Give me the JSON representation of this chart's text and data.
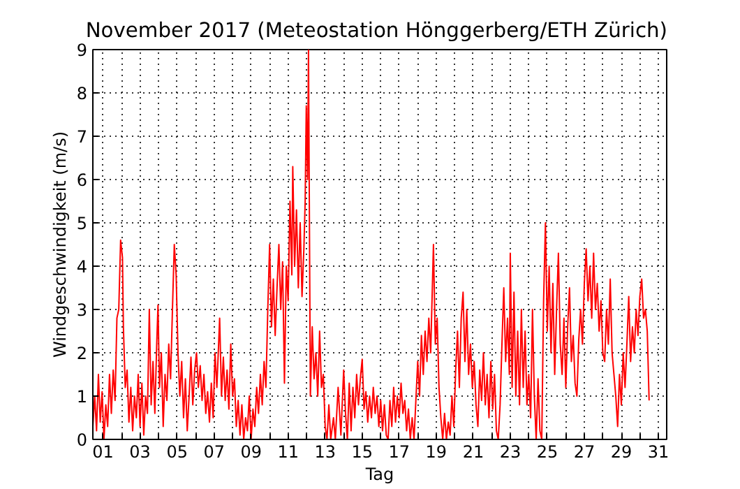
{
  "chart_data": {
    "type": "line",
    "title": "November 2017  (Meteostation Hönggerberg/ETH Zürich)",
    "xlabel": "Tag",
    "ylabel": "Windgeschwindigkeit (m/s)",
    "xlim": [
      0.45,
      31.45
    ],
    "ylim": [
      0,
      9
    ],
    "xticks": [
      {
        "value": 1,
        "label": "01"
      },
      {
        "value": 2,
        "label": null
      },
      {
        "value": 3,
        "label": "03"
      },
      {
        "value": 4,
        "label": null
      },
      {
        "value": 5,
        "label": "05"
      },
      {
        "value": 6,
        "label": null
      },
      {
        "value": 7,
        "label": "07"
      },
      {
        "value": 8,
        "label": null
      },
      {
        "value": 9,
        "label": "09"
      },
      {
        "value": 10,
        "label": null
      },
      {
        "value": 11,
        "label": "11"
      },
      {
        "value": 12,
        "label": null
      },
      {
        "value": 13,
        "label": "13"
      },
      {
        "value": 14,
        "label": null
      },
      {
        "value": 15,
        "label": "15"
      },
      {
        "value": 16,
        "label": null
      },
      {
        "value": 17,
        "label": "17"
      },
      {
        "value": 18,
        "label": null
      },
      {
        "value": 19,
        "label": "19"
      },
      {
        "value": 20,
        "label": null
      },
      {
        "value": 21,
        "label": "21"
      },
      {
        "value": 22,
        "label": null
      },
      {
        "value": 23,
        "label": "23"
      },
      {
        "value": 24,
        "label": null
      },
      {
        "value": 25,
        "label": "25"
      },
      {
        "value": 26,
        "label": null
      },
      {
        "value": 27,
        "label": "27"
      },
      {
        "value": 28,
        "label": null
      },
      {
        "value": 29,
        "label": "29"
      },
      {
        "value": 30,
        "label": null
      },
      {
        "value": 31,
        "label": "31"
      }
    ],
    "yticks": [
      0,
      1,
      2,
      3,
      4,
      5,
      6,
      7,
      8,
      9
    ],
    "grid": true,
    "series": [
      {
        "color": "#ff0000",
        "x": [
          0.45,
          0.55,
          0.65,
          0.75,
          0.85,
          0.95,
          1.05,
          1.15,
          1.25,
          1.35,
          1.45,
          1.55,
          1.65,
          1.75,
          1.85,
          1.95,
          2.05,
          2.1,
          2.2,
          2.3,
          2.4,
          2.5,
          2.6,
          2.7,
          2.8,
          2.9,
          3.0,
          3.1,
          3.2,
          3.3,
          3.4,
          3.5,
          3.6,
          3.7,
          3.8,
          3.9,
          3.97,
          4.05,
          4.15,
          4.25,
          4.35,
          4.45,
          4.55,
          4.65,
          4.75,
          4.85,
          4.95,
          5.05,
          5.15,
          5.25,
          5.35,
          5.45,
          5.55,
          5.65,
          5.75,
          5.85,
          5.95,
          6.05,
          6.15,
          6.25,
          6.35,
          6.45,
          6.55,
          6.65,
          6.75,
          6.85,
          6.95,
          7.05,
          7.15,
          7.3,
          7.4,
          7.5,
          7.6,
          7.7,
          7.8,
          7.9,
          8.0,
          8.1,
          8.2,
          8.3,
          8.4,
          8.5,
          8.6,
          8.7,
          8.8,
          8.9,
          9.0,
          9.1,
          9.2,
          9.3,
          9.4,
          9.5,
          9.6,
          9.7,
          9.8,
          9.9,
          10.0,
          10.1,
          10.2,
          10.3,
          10.4,
          10.5,
          10.6,
          10.7,
          10.8,
          10.9,
          11.0,
          11.1,
          11.2,
          11.25,
          11.35,
          11.45,
          11.55,
          11.65,
          11.75,
          11.85,
          11.92,
          11.98,
          12.05,
          12.1,
          12.15,
          12.2,
          12.3,
          12.4,
          12.5,
          12.6,
          12.7,
          12.8,
          12.9,
          13.0,
          13.1,
          13.2,
          13.3,
          13.45,
          13.55,
          13.7,
          13.85,
          14.0,
          14.1,
          14.2,
          14.3,
          14.4,
          14.5,
          14.6,
          14.7,
          14.8,
          14.9,
          15.0,
          15.1,
          15.2,
          15.3,
          15.4,
          15.5,
          15.6,
          15.7,
          15.8,
          15.9,
          16.0,
          16.1,
          16.2,
          16.3,
          16.4,
          16.5,
          16.6,
          16.7,
          16.8,
          16.9,
          17.0,
          17.1,
          17.2,
          17.3,
          17.4,
          17.5,
          17.6,
          17.7,
          17.8,
          17.9,
          18.0,
          18.1,
          18.2,
          18.3,
          18.4,
          18.5,
          18.6,
          18.7,
          18.85,
          18.95,
          19.05,
          19.15,
          19.25,
          19.35,
          19.45,
          19.55,
          19.65,
          19.75,
          19.85,
          19.95,
          20.05,
          20.15,
          20.25,
          20.35,
          20.45,
          20.55,
          20.65,
          20.75,
          20.85,
          20.95,
          21.05,
          21.15,
          21.25,
          21.35,
          21.45,
          21.55,
          21.65,
          21.75,
          21.85,
          21.95,
          22.05,
          22.15,
          22.25,
          22.35,
          22.45,
          22.55,
          22.65,
          22.75,
          22.85,
          22.95,
          23.0,
          23.1,
          23.2,
          23.3,
          23.4,
          23.5,
          23.6,
          23.7,
          23.8,
          23.9,
          24.0,
          24.1,
          24.2,
          24.3,
          24.4,
          24.5,
          24.6,
          24.7,
          24.8,
          24.9,
          25.0,
          25.1,
          25.2,
          25.3,
          25.4,
          25.5,
          25.6,
          25.7,
          25.8,
          25.9,
          26.0,
          26.1,
          26.2,
          26.3,
          26.4,
          26.5,
          26.6,
          26.7,
          26.8,
          26.9,
          27.0,
          27.1,
          27.2,
          27.3,
          27.4,
          27.5,
          27.6,
          27.7,
          27.8,
          27.9,
          28.0,
          28.1,
          28.2,
          28.3,
          28.4,
          28.5,
          28.6,
          28.7,
          28.8,
          28.9,
          29.0,
          29.1,
          29.2,
          29.3,
          29.4,
          29.5,
          29.6,
          29.7,
          29.8,
          29.9,
          30.0,
          30.1,
          30.2,
          30.3,
          30.4,
          30.5
        ],
        "values": [
          0.3,
          1.0,
          0.2,
          1.5,
          0.4,
          1.1,
          0.0,
          0.8,
          0.3,
          1.5,
          0.6,
          1.6,
          0.9,
          2.8,
          3.0,
          4.6,
          4.2,
          2.6,
          1.2,
          1.6,
          0.4,
          1.2,
          0.2,
          1.0,
          0.5,
          1.5,
          0.3,
          1.3,
          0.1,
          1.0,
          0.6,
          3.0,
          0.8,
          1.8,
          0.6,
          2.2,
          3.1,
          1.2,
          2.0,
          0.3,
          1.5,
          0.9,
          2.2,
          1.4,
          3.0,
          4.5,
          3.8,
          2.0,
          1.0,
          1.8,
          0.5,
          1.4,
          0.2,
          1.0,
          1.9,
          0.8,
          1.6,
          2.0,
          1.2,
          1.7,
          0.9,
          1.5,
          0.6,
          1.1,
          0.4,
          1.3,
          0.5,
          2.0,
          1.2,
          2.8,
          1.0,
          1.9,
          0.9,
          1.6,
          0.7,
          2.2,
          1.0,
          1.4,
          0.3,
          0.9,
          0.1,
          0.8,
          0.0,
          0.5,
          0.2,
          1.0,
          0.0,
          0.7,
          0.3,
          1.2,
          0.6,
          1.5,
          0.8,
          1.8,
          1.2,
          3.0,
          4.5,
          2.6,
          3.7,
          2.4,
          3.5,
          4.5,
          3.0,
          4.1,
          1.3,
          4.0,
          3.2,
          5.5,
          3.8,
          6.3,
          4.0,
          5.3,
          3.5,
          5.0,
          3.3,
          4.4,
          5.5,
          7.7,
          6.0,
          9.0,
          5.0,
          1.0,
          2.6,
          1.4,
          2.0,
          1.0,
          2.5,
          1.2,
          1.5,
          0.3,
          0.0,
          0.8,
          0.0,
          0.5,
          0.0,
          1.2,
          0.1,
          1.6,
          0.6,
          0.0,
          1.3,
          0.2,
          1.2,
          0.5,
          1.5,
          0.8,
          1.4,
          1.85,
          0.7,
          1.1,
          0.4,
          1.0,
          0.5,
          1.2,
          0.6,
          1.0,
          0.3,
          0.9,
          0.2,
          0.8,
          0.1,
          0.0,
          0.9,
          0.3,
          1.2,
          0.4,
          1.0,
          0.5,
          1.3,
          0.6,
          0.9,
          0.2,
          0.7,
          0.0,
          0.5,
          0.0,
          0.9,
          1.8,
          1.0,
          2.4,
          1.5,
          2.5,
          1.8,
          2.8,
          2.0,
          4.5,
          2.2,
          2.8,
          1.2,
          0.5,
          0.0,
          0.6,
          0.0,
          0.4,
          0.1,
          1.0,
          0.3,
          1.6,
          2.5,
          1.2,
          2.8,
          3.4,
          1.8,
          3.0,
          1.5,
          2.2,
          1.2,
          1.8,
          0.8,
          0.3,
          1.6,
          0.9,
          2.0,
          0.8,
          1.5,
          0.5,
          1.8,
          0.7,
          1.5,
          0.2,
          0.0,
          0.8,
          2.2,
          3.5,
          1.8,
          2.8,
          1.5,
          4.3,
          1.2,
          3.4,
          1.0,
          2.5,
          0.8,
          3.0,
          1.2,
          2.5,
          0.8,
          1.5,
          0.5,
          3.0,
          1.0,
          0.0,
          1.4,
          0.2,
          0.0,
          3.2,
          5.0,
          2.5,
          4.0,
          2.0,
          3.6,
          1.5,
          3.0,
          4.3,
          2.2,
          1.5,
          2.8,
          1.2,
          2.6,
          3.5,
          1.8,
          2.4,
          1.3,
          1.0,
          2.3,
          3.0,
          2.2,
          3.6,
          4.4,
          3.2,
          4.0,
          2.8,
          4.3,
          3.0,
          3.6,
          2.5,
          3.2,
          2.0,
          1.8,
          3.0,
          2.2,
          3.7,
          2.0,
          1.5,
          1.0,
          0.3,
          1.5,
          0.8,
          2.0,
          1.2,
          2.2,
          3.3,
          1.8,
          2.6,
          2.0,
          3.0,
          2.4,
          3.3,
          3.7,
          2.8,
          3.0,
          2.5,
          0.9
        ]
      }
    ]
  }
}
